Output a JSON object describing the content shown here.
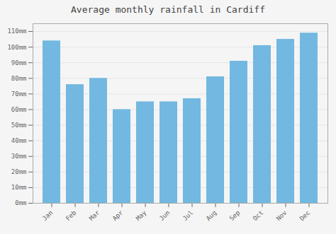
{
  "chart_data": {
    "type": "bar",
    "title": "Average monthly rainfall in Cardiff",
    "categories": [
      "Jan",
      "Feb",
      "Mar",
      "Apr",
      "May",
      "Jun",
      "Jul",
      "Aug",
      "Sep",
      "Oct",
      "Nov",
      "Dec"
    ],
    "values": [
      104,
      76,
      80,
      60,
      65,
      65,
      67,
      81,
      91,
      101,
      105,
      109
    ],
    "color": "#72b8e0",
    "ylim": [
      0,
      115
    ],
    "yticks": [
      {
        "value": 0,
        "label": "0mm"
      },
      {
        "value": 10,
        "label": "10mm"
      },
      {
        "value": 20,
        "label": "20mm"
      },
      {
        "value": 30,
        "label": "30mm"
      },
      {
        "value": 40,
        "label": "40mm"
      },
      {
        "value": 50,
        "label": "50mm"
      },
      {
        "value": 60,
        "label": "60mm"
      },
      {
        "value": 70,
        "label": "70mm"
      },
      {
        "value": 80,
        "label": "80mm"
      },
      {
        "value": 90,
        "label": "90mm"
      },
      {
        "value": 100,
        "label": "100mm"
      },
      {
        "value": 110,
        "label": "110mm"
      }
    ],
    "grid": true
  }
}
